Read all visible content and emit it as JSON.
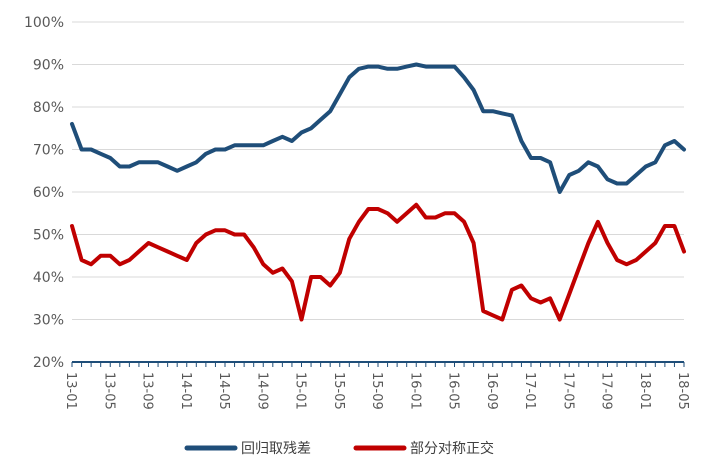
{
  "chart_data": {
    "type": "line",
    "title": "",
    "xlabel": "",
    "ylabel": "",
    "ylim": [
      0.2,
      1.0
    ],
    "y_ticks": [
      "20%",
      "30%",
      "40%",
      "50%",
      "60%",
      "70%",
      "80%",
      "90%",
      "100%"
    ],
    "x_tick_labels": [
      "13-01",
      "13-05",
      "13-09",
      "14-01",
      "14-05",
      "14-09",
      "15-01",
      "15-05",
      "15-09",
      "16-01",
      "16-05",
      "16-09",
      "17-01",
      "17-05",
      "17-09",
      "18-01",
      "18-05"
    ],
    "grid": "horizontal",
    "legend_position": "bottom",
    "x": [
      "13-01",
      "13-02",
      "13-03",
      "13-04",
      "13-05",
      "13-06",
      "13-07",
      "13-08",
      "13-09",
      "13-10",
      "13-11",
      "13-12",
      "14-01",
      "14-02",
      "14-03",
      "14-04",
      "14-05",
      "14-06",
      "14-07",
      "14-08",
      "14-09",
      "14-10",
      "14-11",
      "14-12",
      "15-01",
      "15-02",
      "15-03",
      "15-04",
      "15-05",
      "15-06",
      "15-07",
      "15-08",
      "15-09",
      "15-10",
      "15-11",
      "15-12",
      "16-01",
      "16-02",
      "16-03",
      "16-04",
      "16-05",
      "16-06",
      "16-07",
      "16-08",
      "16-09",
      "16-10",
      "16-11",
      "16-12",
      "17-01",
      "17-02",
      "17-03",
      "17-04",
      "17-05",
      "17-06",
      "17-07",
      "17-08",
      "17-09",
      "17-10",
      "17-11",
      "17-12",
      "18-01",
      "18-02",
      "18-03",
      "18-04",
      "18-05"
    ],
    "series": [
      {
        "name": "回归取残差",
        "color": "#1f4e79",
        "values": [
          0.76,
          0.7,
          0.7,
          0.69,
          0.68,
          0.66,
          0.66,
          0.67,
          0.67,
          0.67,
          0.66,
          0.65,
          0.66,
          0.67,
          0.69,
          0.7,
          0.7,
          0.71,
          0.71,
          0.71,
          0.71,
          0.72,
          0.73,
          0.72,
          0.74,
          0.75,
          0.77,
          0.79,
          0.83,
          0.87,
          0.89,
          0.895,
          0.895,
          0.89,
          0.89,
          0.895,
          0.9,
          0.895,
          0.895,
          0.895,
          0.895,
          0.87,
          0.84,
          0.79,
          0.79,
          0.785,
          0.78,
          0.72,
          0.68,
          0.68,
          0.67,
          0.6,
          0.64,
          0.65,
          0.67,
          0.66,
          0.63,
          0.62,
          0.62,
          0.64,
          0.66,
          0.67,
          0.71,
          0.72,
          0.7
        ]
      },
      {
        "name": "部分对称正交",
        "color": "#c00000",
        "values": [
          0.52,
          0.44,
          0.43,
          0.45,
          0.45,
          0.43,
          0.44,
          0.46,
          0.48,
          0.47,
          0.46,
          0.45,
          0.44,
          0.48,
          0.5,
          0.51,
          0.51,
          0.5,
          0.5,
          0.47,
          0.43,
          0.41,
          0.42,
          0.39,
          0.3,
          0.4,
          0.4,
          0.38,
          0.41,
          0.49,
          0.53,
          0.56,
          0.56,
          0.55,
          0.53,
          0.55,
          0.57,
          0.54,
          0.54,
          0.55,
          0.55,
          0.53,
          0.48,
          0.32,
          0.31,
          0.3,
          0.37,
          0.38,
          0.35,
          0.34,
          0.35,
          0.3,
          0.36,
          0.42,
          0.48,
          0.53,
          0.48,
          0.44,
          0.43,
          0.44,
          0.46,
          0.48,
          0.52,
          0.52,
          0.46
        ]
      }
    ]
  }
}
